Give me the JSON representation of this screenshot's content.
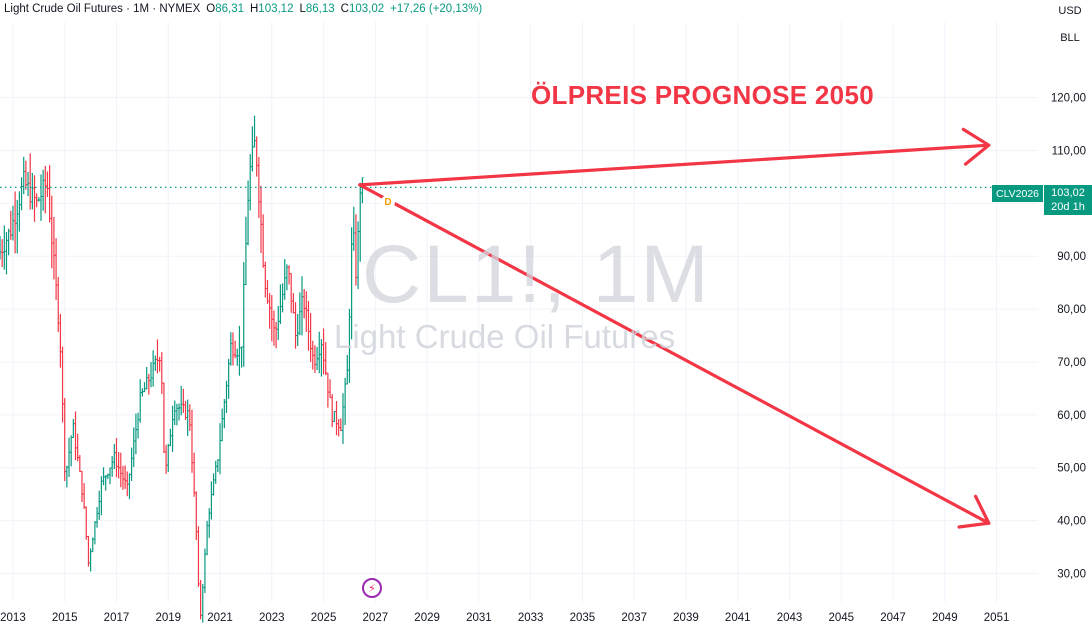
{
  "legend": {
    "title": "Light Crude Oil Futures",
    "interval": "1M",
    "exchange": "NYMEX",
    "open_label": "O",
    "open": "86,31",
    "high_label": "H",
    "high": "103,12",
    "low_label": "L",
    "low": "86,13",
    "close_label": "C",
    "close": "103,02",
    "change": "+17,26 (+20,13%)"
  },
  "axis_units": {
    "currency": "USD",
    "unit": "BLL"
  },
  "annotation_text": "ÖLPREIS PROGNOSE 2050",
  "watermark": {
    "symbol": "CL1!, 1M",
    "name": "Light Crude Oil Futures"
  },
  "price_tag": {
    "contract": "CLV2026",
    "price": "103,02",
    "countdown": "20d 1h"
  },
  "marker": {
    "letter": "D"
  },
  "icons": {
    "event": "lightning-icon"
  },
  "colors": {
    "up": "#089981",
    "down": "#f23645",
    "arrow": "#f23645",
    "grid": "#f0f3fa",
    "price_line": "#089981"
  },
  "chart_data": {
    "type": "bar",
    "series_type": "ohlc-monthly",
    "x_ticks": [
      "2013",
      "2015",
      "2017",
      "2019",
      "2021",
      "2023",
      "2025",
      "2027",
      "2029",
      "2031",
      "2033",
      "2035",
      "2037",
      "2039",
      "2041",
      "2043",
      "2045",
      "2047",
      "2049",
      "2051"
    ],
    "y_ticks": [
      "30,00",
      "40,00",
      "50,00",
      "60,00",
      "70,00",
      "80,00",
      "90,00",
      "100,00",
      "110,00",
      "120,00"
    ],
    "y_tick_values": [
      30,
      40,
      50,
      60,
      70,
      80,
      90,
      100,
      110,
      120
    ],
    "x_range": [
      2012.5,
      2052.6
    ],
    "y_range": [
      24.6,
      134.3
    ],
    "current_price": 103.02,
    "price_anchors": [
      {
        "t": 2012.5,
        "p": 90
      },
      {
        "t": 2013.0,
        "p": 95
      },
      {
        "t": 2013.5,
        "p": 104
      },
      {
        "t": 2014.0,
        "p": 100
      },
      {
        "t": 2014.4,
        "p": 104
      },
      {
        "t": 2014.9,
        "p": 75
      },
      {
        "t": 2015.1,
        "p": 48
      },
      {
        "t": 2015.4,
        "p": 58
      },
      {
        "t": 2015.8,
        "p": 44
      },
      {
        "t": 2016.0,
        "p": 32
      },
      {
        "t": 2016.5,
        "p": 47
      },
      {
        "t": 2017.0,
        "p": 52
      },
      {
        "t": 2017.5,
        "p": 46
      },
      {
        "t": 2018.0,
        "p": 63
      },
      {
        "t": 2018.8,
        "p": 72
      },
      {
        "t": 2018.95,
        "p": 48
      },
      {
        "t": 2019.3,
        "p": 62
      },
      {
        "t": 2019.9,
        "p": 60
      },
      {
        "t": 2020.2,
        "p": 35
      },
      {
        "t": 2020.3,
        "p": 20
      },
      {
        "t": 2020.6,
        "p": 40
      },
      {
        "t": 2021.0,
        "p": 52
      },
      {
        "t": 2021.5,
        "p": 73
      },
      {
        "t": 2021.9,
        "p": 72
      },
      {
        "t": 2022.2,
        "p": 105
      },
      {
        "t": 2022.45,
        "p": 112
      },
      {
        "t": 2022.8,
        "p": 86
      },
      {
        "t": 2023.2,
        "p": 75
      },
      {
        "t": 2023.7,
        "p": 88
      },
      {
        "t": 2024.0,
        "p": 75
      },
      {
        "t": 2024.3,
        "p": 82
      },
      {
        "t": 2024.7,
        "p": 70
      },
      {
        "t": 2025.0,
        "p": 74
      },
      {
        "t": 2025.4,
        "p": 60
      },
      {
        "t": 2025.75,
        "p": 58
      },
      {
        "t": 2026.0,
        "p": 68
      },
      {
        "t": 2026.2,
        "p": 96
      },
      {
        "t": 2026.35,
        "p": 86
      },
      {
        "t": 2026.5,
        "p": 103
      }
    ],
    "arrows": [
      {
        "from": {
          "t": 2026.4,
          "p": 103.5
        },
        "to": {
          "t": 2050.7,
          "p": 111
        }
      },
      {
        "from": {
          "t": 2026.4,
          "p": 103.5
        },
        "to": {
          "t": 2050.7,
          "p": 39.5
        }
      }
    ]
  }
}
